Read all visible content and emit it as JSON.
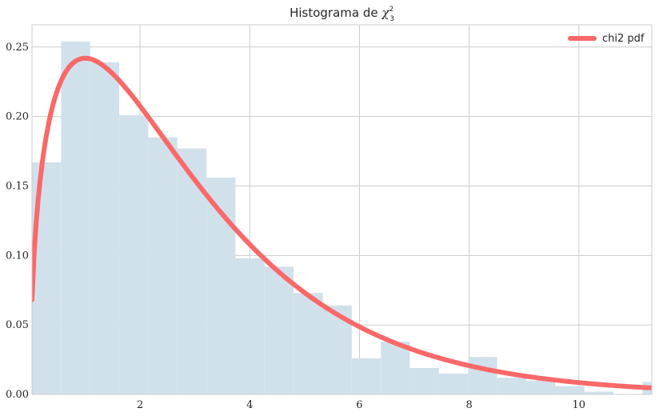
{
  "chart_data": {
    "type": "bar",
    "title": "Histograma de ",
    "title_symbol": "χ",
    "title_superscript": "2",
    "title_subscript": "3",
    "xlabel": "",
    "ylabel": "",
    "xlim": [
      0.03,
      11.33
    ],
    "ylim": [
      0,
      0.266
    ],
    "xticks": [
      2,
      4,
      6,
      8,
      10
    ],
    "xtick_labels": [
      "2",
      "4",
      "6",
      "8",
      "10"
    ],
    "yticks": [
      0,
      0.05,
      0.1,
      0.15,
      0.2,
      0.25
    ],
    "ytick_labels": [
      "0.00",
      "0.05",
      "0.10",
      "0.15",
      "0.20",
      "0.25"
    ],
    "grid": true,
    "legend_position": "top-right",
    "histogram": {
      "bin_edges": [
        0.03,
        0.56,
        1.09,
        1.62,
        2.15,
        2.68,
        3.21,
        3.74,
        4.27,
        4.8,
        5.33,
        5.86,
        6.39,
        6.92,
        7.45,
        7.98,
        8.51,
        9.04,
        9.57,
        10.1,
        10.63,
        11.16,
        11.69
      ],
      "density": [
        0.167,
        0.254,
        0.239,
        0.201,
        0.185,
        0.177,
        0.156,
        0.098,
        0.092,
        0.073,
        0.064,
        0.026,
        0.038,
        0.019,
        0.015,
        0.027,
        0.012,
        0.01,
        0.006,
        0.002,
        0.0,
        0.009
      ],
      "color": "#d1e1ec"
    },
    "series": [
      {
        "name": "chi2 pdf",
        "type": "line",
        "distribution": "chi2",
        "df": 3,
        "x_range": [
          0.03,
          11.33
        ],
        "color": "#fb6868"
      }
    ]
  }
}
